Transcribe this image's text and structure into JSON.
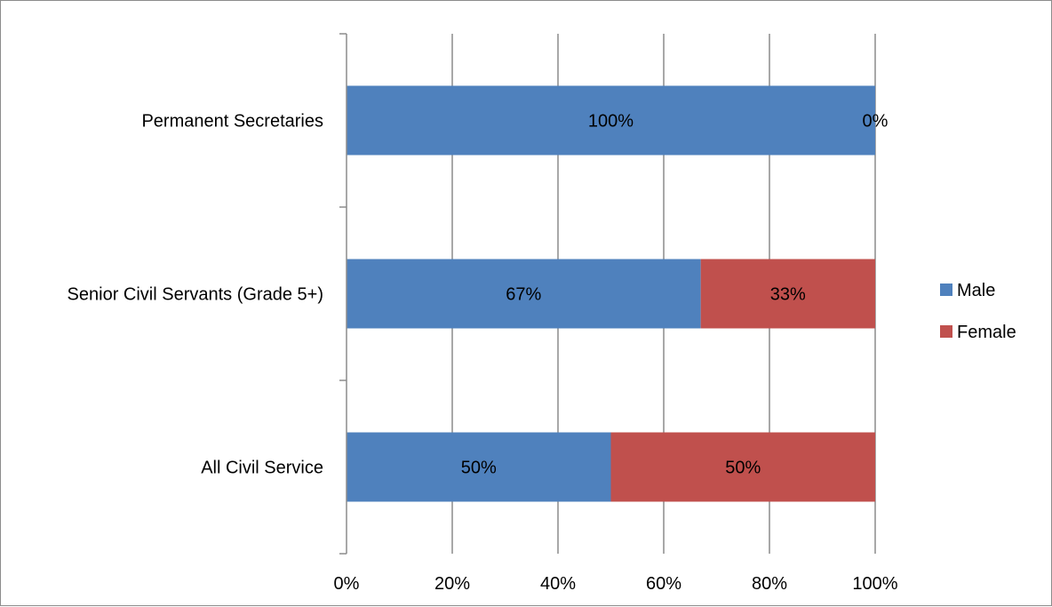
{
  "colors": {
    "male": "#4f81bd",
    "female": "#c0504d",
    "grid": "#8c8c8c"
  },
  "chart_data": {
    "type": "bar",
    "orientation": "horizontal",
    "stacked": "percent",
    "title": "",
    "xlabel": "",
    "ylabel": "",
    "categories": [
      "Permanent Secretaries",
      "Senior Civil Servants (Grade 5+)",
      "All Civil Service"
    ],
    "series": [
      {
        "name": "Male",
        "values": [
          100,
          67,
          50
        ],
        "labels": [
          "100%",
          "67%",
          "50%"
        ]
      },
      {
        "name": "Female",
        "values": [
          0,
          33,
          50
        ],
        "labels": [
          "0%",
          "33%",
          "50%"
        ]
      }
    ],
    "xlim": [
      0,
      100
    ],
    "ticks": [
      "0%",
      "20%",
      "40%",
      "60%",
      "80%",
      "100%"
    ],
    "grid": "vertical",
    "legend": "right"
  }
}
